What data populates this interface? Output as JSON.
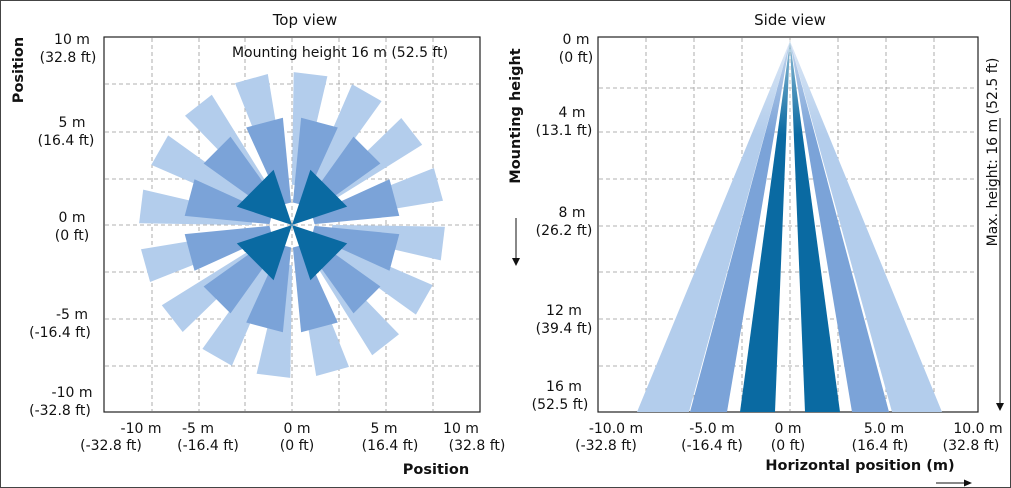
{
  "top_view": {
    "title": "Top view",
    "subtitle": "Mounting height 16 m (52.5 ft)",
    "y_axis_label": "Position",
    "x_axis_label": "Position",
    "y_ticks": [
      {
        "m": "10 m",
        "ft": "(32.8 ft)"
      },
      {
        "m": "5 m",
        "ft": "(16.4 ft)"
      },
      {
        "m": "0 m",
        "ft": "(0 ft)"
      },
      {
        "m": "-5 m",
        "ft": "(-16.4 ft)"
      },
      {
        "m": "-10 m",
        "ft": "(-32.8 ft)"
      }
    ],
    "x_ticks": [
      {
        "m": "-10 m",
        "ft": "(-32.8 ft)"
      },
      {
        "m": "-5 m",
        "ft": "(-16.4 ft)"
      },
      {
        "m": "0 m",
        "ft": "(0 ft)"
      },
      {
        "m": "5 m",
        "ft": "(16.4 ft)"
      },
      {
        "m": "10 m",
        "ft": "(32.8 ft)"
      }
    ]
  },
  "side_view": {
    "title": "Side view",
    "y_axis_label": "Mounting height",
    "x_axis_label": "Horizontal position (m)",
    "max_height_label": "Max. height: 16 m (52.5 ft)",
    "y_ticks": [
      {
        "m": "0 m",
        "ft": "(0 ft)"
      },
      {
        "m": "4 m",
        "ft": "(13.1 ft)"
      },
      {
        "m": "8 m",
        "ft": "(26.2 ft)"
      },
      {
        "m": "12 m",
        "ft": "(39.4 ft)"
      },
      {
        "m": "16 m",
        "ft": "(52.5 ft)"
      }
    ],
    "x_ticks": [
      {
        "m": "-10.0 m",
        "ft": "(-32.8 ft)"
      },
      {
        "m": "-5.0 m",
        "ft": "(-16.4 ft)"
      },
      {
        "m": "0 m",
        "ft": "(0 ft)"
      },
      {
        "m": "5.0 m",
        "ft": "(16.4 ft)"
      },
      {
        "m": "10.0 m",
        "ft": "(32.8 ft)"
      }
    ]
  },
  "colors": {
    "light": "#b3cdec",
    "mid": "#7ba3d8",
    "dark": "#0a6aa2",
    "grid": "#999999"
  }
}
